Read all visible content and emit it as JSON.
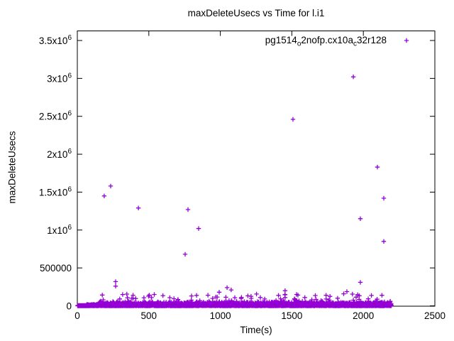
{
  "background_color": "#ffffff",
  "chart_data": {
    "type": "scatter",
    "title": "maxDeleteUsecs vs Time for l.i1",
    "xlabel": "Time(s)",
    "ylabel": "maxDeleteUsecs",
    "xlim": [
      0,
      2500
    ],
    "ylim": [
      0,
      3620000
    ],
    "grid": false,
    "series_color": "#9400D3",
    "marker": "plus",
    "legend": {
      "position": "top-right-inside",
      "label_plain": "pg1514_o2nofp.cx10a_c32r128",
      "label_parts": [
        {
          "text": "pg1514",
          "sub": false
        },
        {
          "text": "o",
          "sub": true
        },
        {
          "text": "2nofp.cx10a",
          "sub": false
        },
        {
          "text": "c",
          "sub": true
        },
        {
          "text": "32r128",
          "sub": false
        }
      ]
    },
    "xticks": [
      {
        "value": 0,
        "label": "0"
      },
      {
        "value": 500,
        "label": "500"
      },
      {
        "value": 1000,
        "label": "1000"
      },
      {
        "value": 1500,
        "label": "1500"
      },
      {
        "value": 2000,
        "label": "2000"
      },
      {
        "value": 2500,
        "label": "2500"
      }
    ],
    "yticks": [
      {
        "value": 0,
        "label": "0",
        "sup": ""
      },
      {
        "value": 500000,
        "label": "500000",
        "sup": ""
      },
      {
        "value": 1000000,
        "label": "1x10",
        "sup": "6"
      },
      {
        "value": 1500000,
        "label": "1.5x10",
        "sup": "6"
      },
      {
        "value": 2000000,
        "label": "2x10",
        "sup": "6"
      },
      {
        "value": 2500000,
        "label": "2.5x10",
        "sup": "6"
      },
      {
        "value": 3000000,
        "label": "3x10",
        "sup": "6"
      },
      {
        "value": 3500000,
        "label": "3.5x10",
        "sup": "6"
      }
    ],
    "points": [
      [
        188,
        1450000
      ],
      [
        233,
        1580000
      ],
      [
        268,
        320000
      ],
      [
        268,
        260000
      ],
      [
        390,
        140000
      ],
      [
        390,
        100000
      ],
      [
        427,
        1290000
      ],
      [
        754,
        680000
      ],
      [
        774,
        1270000
      ],
      [
        848,
        1020000
      ],
      [
        913,
        140000
      ],
      [
        992,
        180000
      ],
      [
        1047,
        240000
      ],
      [
        1076,
        210000
      ],
      [
        1280,
        110000
      ],
      [
        1310,
        90000
      ],
      [
        1453,
        200000
      ],
      [
        1453,
        150000
      ],
      [
        1453,
        110000
      ],
      [
        1440,
        70000
      ],
      [
        1508,
        2460000
      ],
      [
        1640,
        80000
      ],
      [
        1740,
        90000
      ],
      [
        1820,
        100000
      ],
      [
        1885,
        187000
      ],
      [
        1930,
        3020000
      ],
      [
        1930,
        75000
      ],
      [
        1979,
        1150000
      ],
      [
        1979,
        310000
      ],
      [
        2088,
        66000
      ],
      [
        2098,
        1830000
      ],
      [
        2143,
        1420000
      ],
      [
        2143,
        850000
      ],
      [
        2188,
        60000
      ]
    ],
    "band": {
      "description": "dense baseline band of maxDeleteUsecs samples hugging 0",
      "t_min": 0,
      "t_max": 2196,
      "typical_max": 60000,
      "spike_max": 160000,
      "points_approx": 3400
    }
  }
}
